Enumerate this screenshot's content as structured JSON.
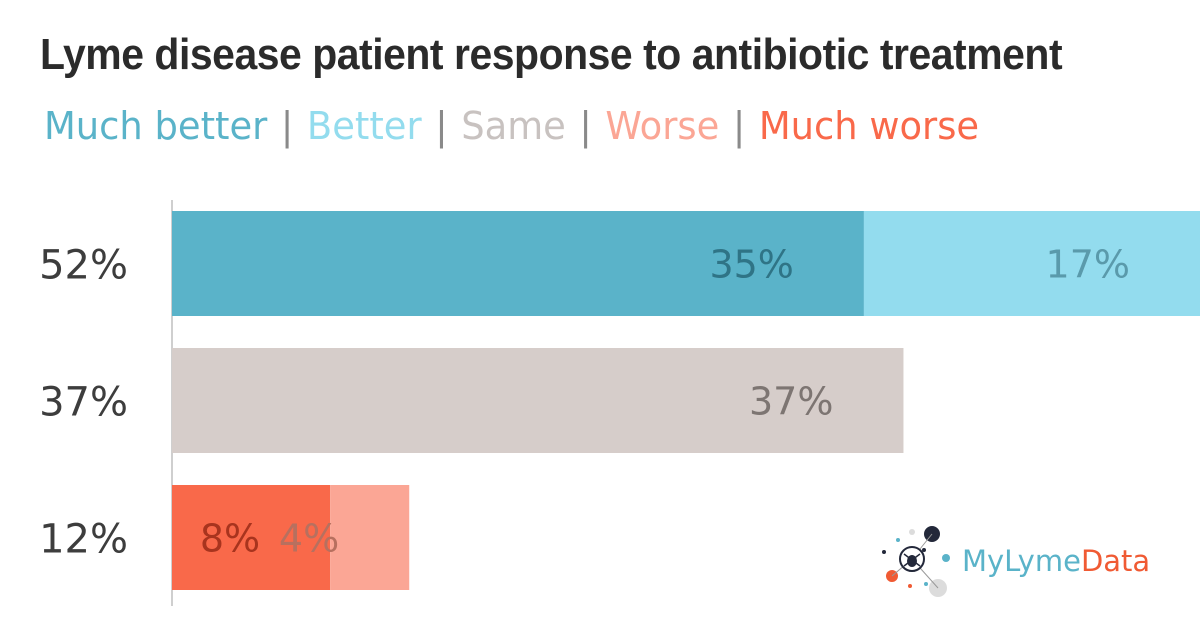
{
  "chart_data": {
    "type": "bar",
    "stacked": true,
    "orientation": "horizontal",
    "title": "Lyme disease patient response to antibiotic treatment",
    "legend": [
      {
        "name": "Much better",
        "color": "#5ab3c9"
      },
      {
        "name": "Better",
        "color": "#93dcee"
      },
      {
        "name": "Same",
        "color": "#d6cdca"
      },
      {
        "name": "Worse",
        "color": "#fba695"
      },
      {
        "name": "Much worse",
        "color": "#f9694a"
      }
    ],
    "legend_separator": "|",
    "categories": [
      "52%",
      "37%",
      "12%"
    ],
    "xlim": [
      0,
      52
    ],
    "segments": [
      [
        {
          "series": "Much better",
          "value": 35,
          "label": "35%",
          "color": "#5ab3c9",
          "label_color": "#2f7486"
        },
        {
          "series": "Better",
          "value": 17,
          "label": "17%",
          "color": "#93dcee",
          "label_color": "#5a9aab"
        }
      ],
      [
        {
          "series": "Same",
          "value": 37,
          "label": "37%",
          "color": "#d6cdca",
          "label_color": "#7d7572"
        }
      ],
      [
        {
          "series": "Much worse",
          "value": 8,
          "label": "8%",
          "color": "#f9694a",
          "label_color": "#a8341e"
        },
        {
          "series": "Worse",
          "value": 4,
          "label": "4%",
          "color": "#fba695",
          "label_color": "#b7705f"
        }
      ]
    ],
    "grid": false
  },
  "brand": {
    "name_part1": "MyLyme",
    "name_part2": "Data",
    "color1": "#5ab3c9",
    "color2": "#f05a33",
    "icon": "tick-bug-icon"
  }
}
